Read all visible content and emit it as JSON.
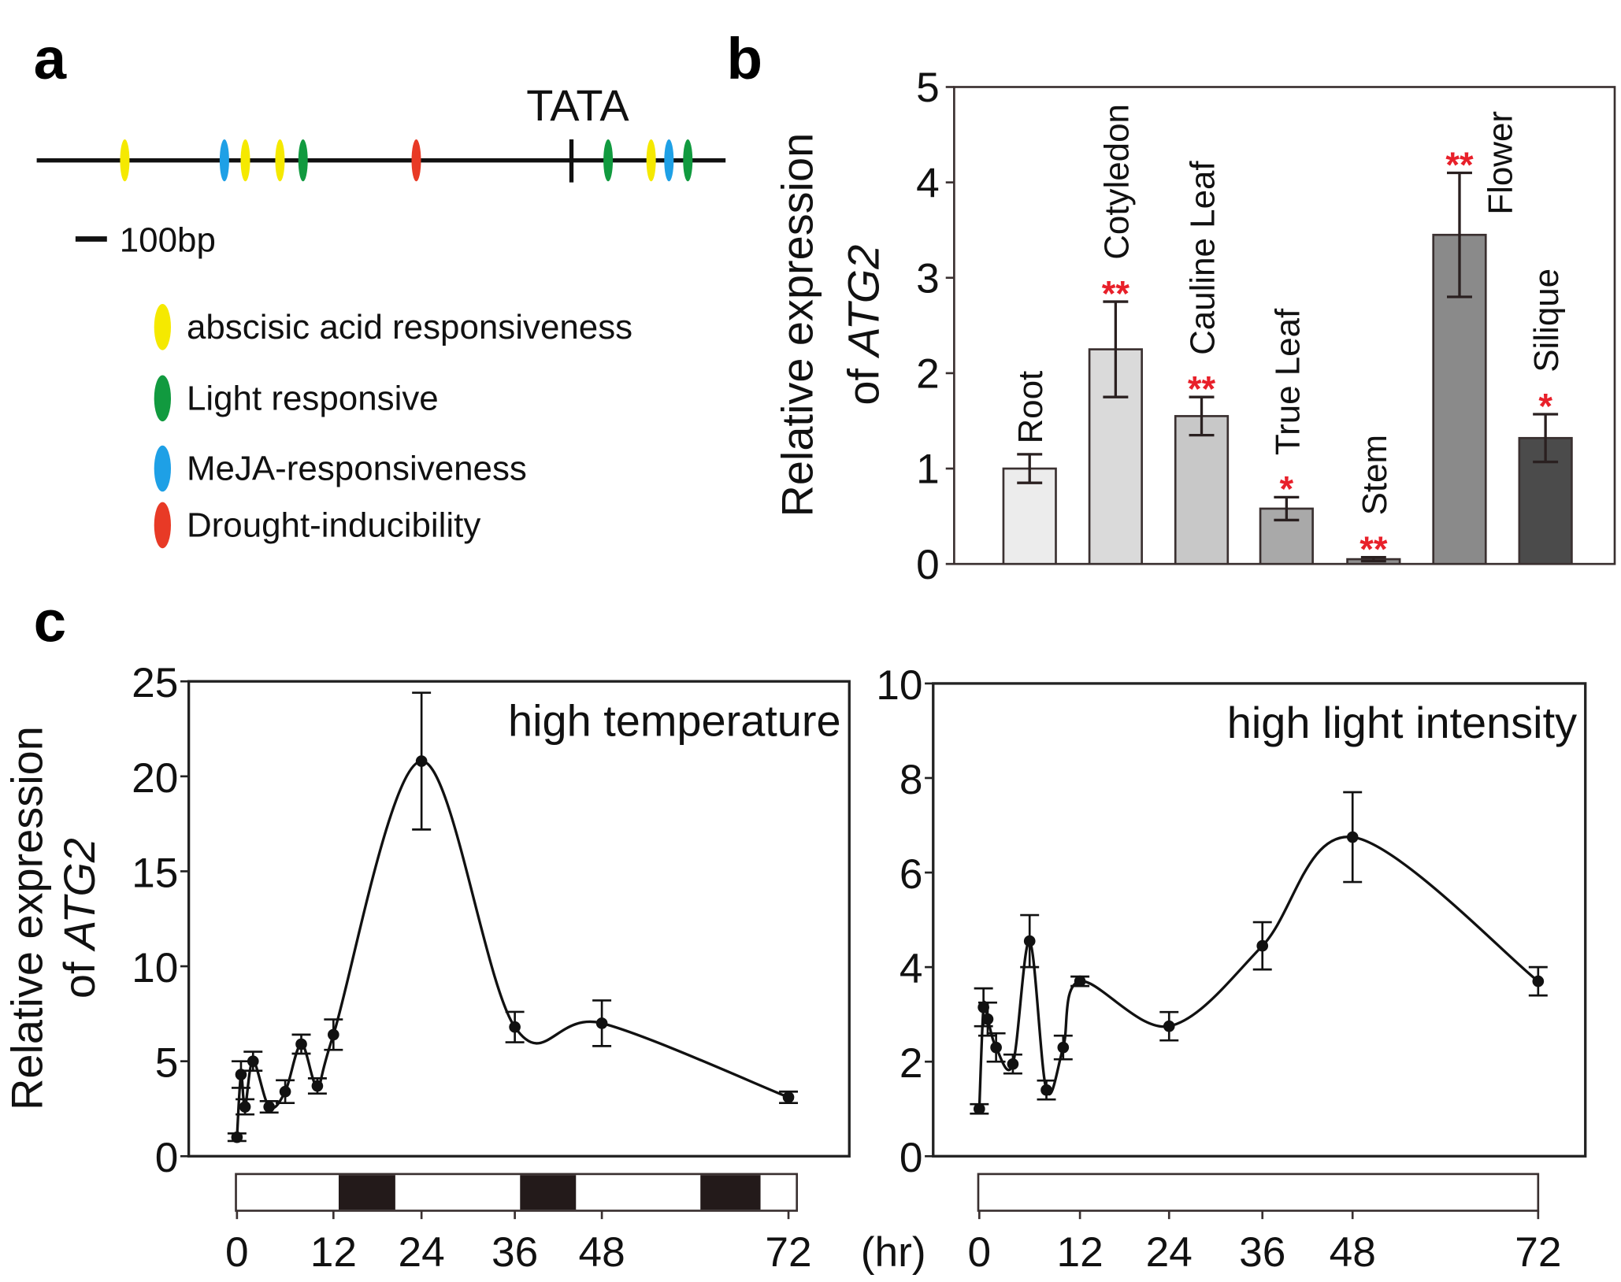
{
  "panel_a": {
    "label": "a",
    "tata_label": "TATA",
    "scale_label": "100bp",
    "element_sequence": [
      "abscisic",
      "meja",
      "abscisic",
      "abscisic",
      "light",
      "drought",
      "light",
      "abscisic",
      "meja",
      "light"
    ],
    "legend": [
      {
        "key": "abscisic",
        "label": "abscisic acid responsiveness",
        "color": "#f5e900"
      },
      {
        "key": "light",
        "label": "Light responsive",
        "color": "#119a3f"
      },
      {
        "key": "meja",
        "label": "MeJA-responsiveness",
        "color": "#1ea0e6"
      },
      {
        "key": "drought",
        "label": "Drought-inducibility",
        "color": "#e83a26"
      }
    ]
  },
  "chart_data": [
    {
      "panel": "b",
      "type": "bar",
      "ylabel_line1": "Relative expression",
      "ylabel_line2_prefix": "of ",
      "ylabel_gene": "ATG2",
      "ylim": [
        0,
        5
      ],
      "yticks": [
        "0",
        "1",
        "2",
        "3",
        "4",
        "5"
      ],
      "categories": [
        "Root",
        "Cotyledon",
        "Cauline Leaf",
        "True Leaf",
        "Stem",
        "Flower",
        "Silique"
      ],
      "values": [
        1.0,
        2.25,
        1.55,
        0.58,
        0.05,
        3.45,
        1.32
      ],
      "errors": [
        0.15,
        0.5,
        0.2,
        0.12,
        0.02,
        0.65,
        0.25
      ],
      "significance": [
        "",
        "**",
        "**",
        "*",
        "**",
        "**",
        "*"
      ],
      "colors": [
        "#ececec",
        "#dadada",
        "#c8c8c8",
        "#a9a9a9",
        "#8f8f8f",
        "#8a8a8a",
        "#4b4b4b"
      ]
    },
    {
      "panel": "c-left",
      "type": "line",
      "title": "high temperature",
      "ylabel_line1": "Relative expression",
      "ylabel_line2_prefix": "of ",
      "ylabel_gene": "ATG2",
      "ylim": [
        0,
        25
      ],
      "yticks": [
        "0",
        "5",
        "10",
        "15",
        "20",
        "25"
      ],
      "xticks": [
        "0",
        "12",
        "24",
        "36",
        "48",
        "72"
      ],
      "xunit": "(hr)",
      "x": [
        0,
        0.5,
        1,
        2,
        4,
        6,
        8,
        10,
        12,
        24,
        36,
        48,
        72
      ],
      "y": [
        1.0,
        4.3,
        2.6,
        5.0,
        2.6,
        3.4,
        5.9,
        3.7,
        6.4,
        20.8,
        6.8,
        7.0,
        3.1
      ],
      "errors": [
        0.2,
        0.7,
        0.4,
        0.5,
        0.3,
        0.6,
        0.5,
        0.4,
        0.8,
        3.6,
        0.8,
        1.2,
        0.3
      ],
      "photoperiod_dark": [
        [
          12,
          20
        ],
        [
          36,
          44
        ],
        [
          60,
          68
        ]
      ]
    },
    {
      "panel": "c-right",
      "type": "line",
      "title": "high light intensity",
      "ylim": [
        0,
        10
      ],
      "yticks": [
        "0",
        "2",
        "4",
        "6",
        "8",
        "10"
      ],
      "xticks": [
        "0",
        "12",
        "24",
        "36",
        "48",
        "72"
      ],
      "x": [
        0,
        0.5,
        1,
        2,
        4,
        6,
        8,
        10,
        12,
        24,
        36,
        48,
        72
      ],
      "y": [
        1.0,
        3.15,
        2.9,
        2.3,
        1.95,
        4.55,
        1.4,
        2.3,
        3.7,
        2.75,
        4.45,
        6.75,
        3.7
      ],
      "errors": [
        0.1,
        0.4,
        0.35,
        0.3,
        0.2,
        0.55,
        0.2,
        0.25,
        0.1,
        0.3,
        0.5,
        0.95,
        0.3
      ],
      "photoperiod_dark": []
    }
  ],
  "panel_b_label": "b",
  "panel_c_label": "c"
}
